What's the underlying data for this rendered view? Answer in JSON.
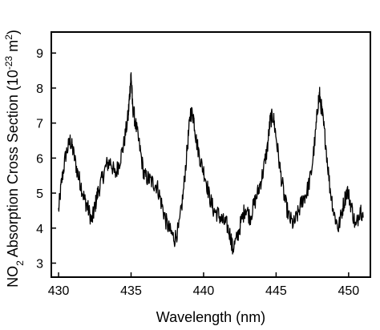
{
  "chart_data": {
    "type": "line",
    "title": "",
    "xlabel": "Wavelength (nm)",
    "ylabel": {
      "prefix": "NO",
      "sub": "2",
      "middle": " Absorption Cross Section (10",
      "sup1": "-23",
      "unit": " m",
      "sup2": "2",
      "suffix": ")"
    },
    "xlim": [
      429.5,
      451.5
    ],
    "ylim": [
      2.6,
      9.6
    ],
    "xticks": [
      430,
      435,
      440,
      445,
      450
    ],
    "yticks": [
      3,
      4,
      5,
      6,
      7,
      8,
      9
    ],
    "xtick_labels": [
      "430",
      "435",
      "440",
      "445",
      "450"
    ],
    "ytick_labels": [
      "3",
      "4",
      "5",
      "6",
      "7",
      "8",
      "9"
    ],
    "grid": false,
    "color": "#000000",
    "series": [
      {
        "x": [
          430.0,
          430.2,
          430.5,
          430.8,
          431.0,
          431.3,
          431.5,
          431.8,
          432.0,
          432.3,
          432.5,
          432.7,
          433.0,
          433.3,
          433.6,
          433.9,
          434.2,
          434.5,
          434.8,
          434.9,
          435.0,
          435.1,
          435.3,
          435.6,
          435.9,
          436.2,
          436.5,
          436.8,
          437.1,
          437.4,
          437.7,
          438.0,
          438.3,
          438.6,
          438.9,
          439.1,
          439.3,
          439.5,
          439.8,
          440.1,
          440.4,
          440.7,
          441.0,
          441.3,
          441.6,
          441.9,
          442.0,
          442.3,
          442.6,
          442.9,
          443.2,
          443.5,
          443.8,
          444.1,
          444.4,
          444.6,
          444.8,
          445.0,
          445.3,
          445.6,
          445.9,
          446.2,
          446.5,
          446.8,
          447.1,
          447.4,
          447.7,
          447.9,
          448.0,
          448.2,
          448.4,
          448.7,
          449.0,
          449.3,
          449.6,
          449.9,
          450.2,
          450.5,
          450.8,
          451.0
        ],
        "y": [
          4.5,
          5.3,
          6.1,
          6.5,
          6.2,
          5.6,
          5.3,
          4.8,
          4.6,
          4.2,
          4.6,
          5.0,
          5.4,
          5.8,
          5.9,
          5.5,
          5.9,
          6.4,
          7.2,
          7.8,
          8.4,
          7.5,
          7.0,
          6.3,
          5.5,
          5.4,
          5.3,
          5.2,
          4.7,
          4.2,
          3.9,
          3.7,
          4.0,
          5.0,
          6.4,
          7.3,
          7.2,
          6.5,
          5.9,
          5.5,
          4.9,
          4.5,
          4.4,
          4.2,
          4.1,
          3.7,
          3.4,
          3.7,
          4.2,
          4.6,
          4.3,
          4.7,
          5.1,
          5.6,
          6.3,
          7.1,
          7.2,
          6.6,
          5.6,
          4.8,
          4.3,
          4.1,
          4.4,
          4.8,
          5.0,
          5.5,
          6.6,
          7.6,
          7.8,
          7.2,
          6.5,
          5.2,
          4.4,
          4.0,
          4.6,
          5.1,
          4.6,
          4.0,
          4.6,
          4.3
        ]
      }
    ]
  }
}
